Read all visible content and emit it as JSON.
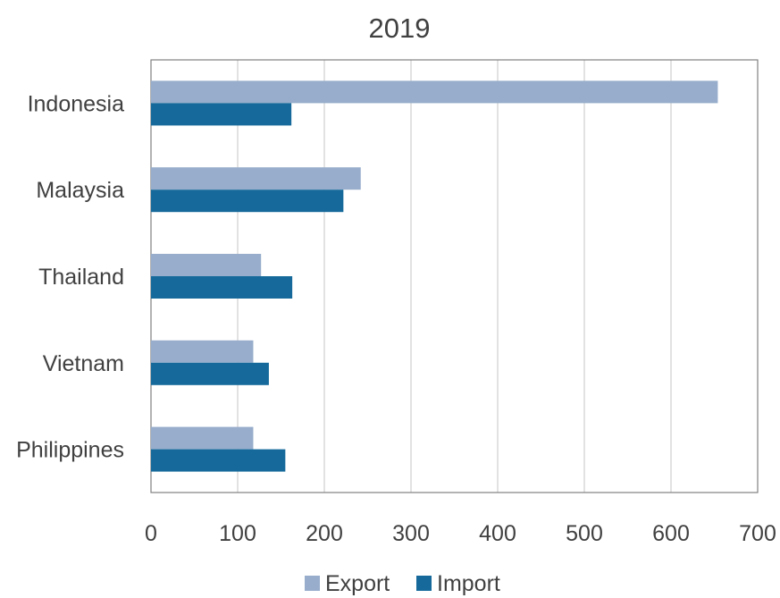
{
  "chart_data": {
    "type": "bar",
    "orientation": "horizontal",
    "title": "2019",
    "xlabel": "",
    "ylabel": "",
    "categories": [
      "Indonesia",
      "Malaysia",
      "Thailand",
      "Vietnam",
      "Philippines"
    ],
    "series": [
      {
        "name": "Export",
        "color": "#97ADCB",
        "values": [
          654,
          242,
          127,
          118,
          118
        ]
      },
      {
        "name": "Import",
        "color": "#156A9B",
        "values": [
          162,
          222,
          163,
          136,
          155
        ]
      }
    ],
    "xlim": [
      0,
      700
    ],
    "x_ticks": [
      "0",
      "100",
      "200",
      "300",
      "400",
      "500",
      "600",
      "700"
    ],
    "grid": "vertical",
    "legend": "bottom"
  }
}
